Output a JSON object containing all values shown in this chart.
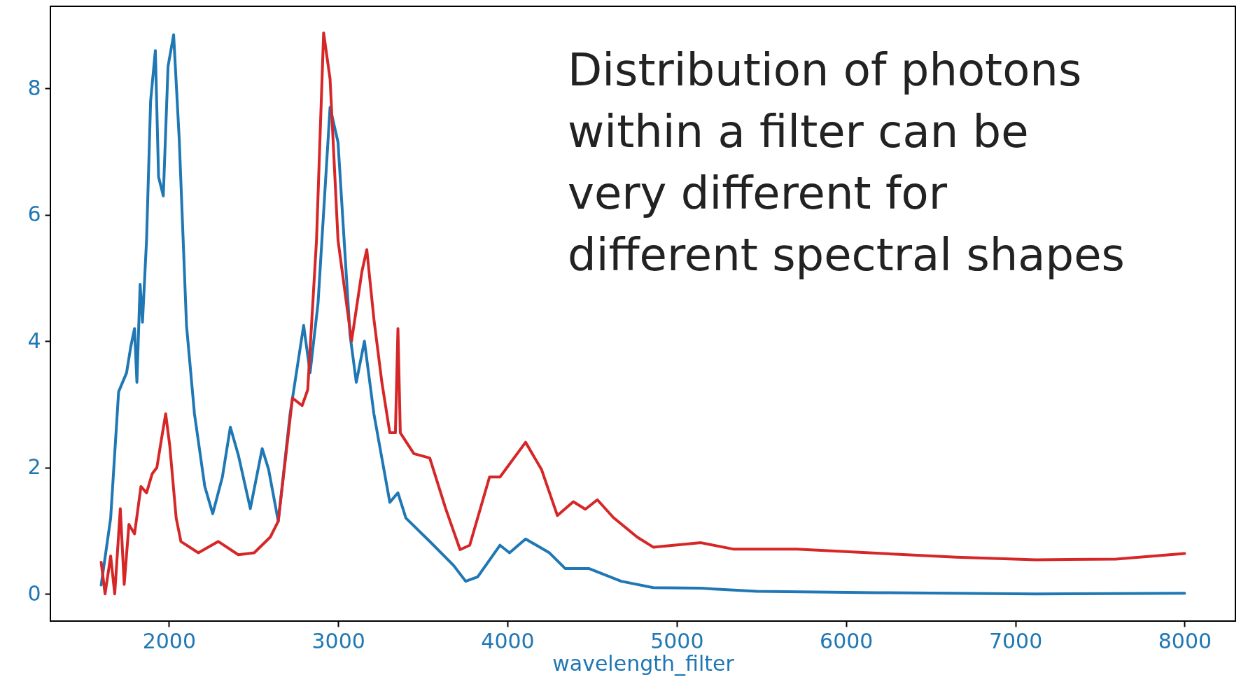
{
  "chart_data": {
    "type": "line",
    "xlabel": "wavelength_filter",
    "xlim": [
      1300,
      8300
    ],
    "xticks": [
      2000,
      3000,
      4000,
      5000,
      6000,
      7000,
      8000
    ],
    "ylim": [
      -0.43,
      9.3
    ],
    "yticks": [
      0,
      2,
      4,
      6,
      8
    ],
    "annotations": [
      "Distribution of photons\nwithin a filter can be\nvery different for\ndifferent spectral shapes"
    ],
    "series": [
      {
        "color": "#1f77b4",
        "x": [
          1600,
          1656,
          1703,
          1750,
          1774,
          1797,
          1811,
          1830,
          1844,
          1868,
          1892,
          1920,
          1939,
          1967,
          1995,
          2028,
          2061,
          2104,
          2151,
          2212,
          2259,
          2316,
          2363,
          2410,
          2481,
          2551,
          2589,
          2646,
          2716,
          2796,
          2834,
          2881,
          2952,
          2999,
          3070,
          3107,
          3155,
          3211,
          3305,
          3353,
          3400,
          3541,
          3682,
          3753,
          3824,
          3956,
          4012,
          4107,
          4248,
          4342,
          4483,
          4672,
          4861,
          5143,
          5473,
          6180,
          7122,
          8000
        ],
        "values": [
          0.14,
          1.2,
          3.2,
          3.5,
          3.9,
          4.2,
          3.35,
          4.9,
          4.3,
          5.6,
          7.8,
          8.6,
          6.6,
          6.3,
          8.35,
          8.85,
          7.2,
          4.25,
          2.85,
          1.7,
          1.27,
          1.85,
          2.64,
          2.2,
          1.35,
          2.3,
          1.97,
          1.15,
          2.85,
          4.25,
          3.5,
          4.6,
          7.7,
          7.15,
          4.1,
          3.35,
          4.0,
          2.85,
          1.45,
          1.6,
          1.2,
          0.83,
          0.45,
          0.2,
          0.27,
          0.77,
          0.65,
          0.87,
          0.65,
          0.4,
          0.4,
          0.2,
          0.1,
          0.09,
          0.04,
          0.02,
          0,
          0.01
        ]
      },
      {
        "color": "#d62728",
        "x": [
          1600,
          1623,
          1656,
          1680,
          1713,
          1736,
          1764,
          1797,
          1835,
          1868,
          1901,
          1929,
          1953,
          1981,
          2005,
          2043,
          2071,
          2174,
          2292,
          2410,
          2504,
          2599,
          2646,
          2730,
          2787,
          2820,
          2872,
          2914,
          2952,
          2999,
          3079,
          3140,
          3169,
          3211,
          3258,
          3305,
          3338,
          3353,
          3367,
          3447,
          3541,
          3635,
          3720,
          3777,
          3894,
          3956,
          4107,
          4201,
          4295,
          4389,
          4460,
          4531,
          4625,
          4766,
          4861,
          5143,
          5332,
          5709,
          6651,
          7122,
          7594,
          8000
        ],
        "values": [
          0.5,
          0.0,
          0.6,
          0.0,
          1.35,
          0.15,
          1.1,
          0.95,
          1.7,
          1.6,
          1.9,
          2.0,
          2.4,
          2.85,
          2.35,
          1.2,
          0.83,
          0.65,
          0.83,
          0.62,
          0.65,
          0.9,
          1.15,
          3.1,
          2.98,
          3.23,
          5.6,
          8.88,
          8.15,
          5.6,
          4.0,
          5.1,
          5.45,
          4.35,
          3.35,
          2.55,
          2.55,
          4.2,
          2.55,
          2.22,
          2.15,
          1.35,
          0.7,
          0.77,
          1.85,
          1.85,
          2.4,
          1.97,
          1.24,
          1.46,
          1.34,
          1.49,
          1.21,
          0.9,
          0.74,
          0.81,
          0.71,
          0.71,
          0.58,
          0.54,
          0.55,
          0.64
        ]
      }
    ]
  }
}
